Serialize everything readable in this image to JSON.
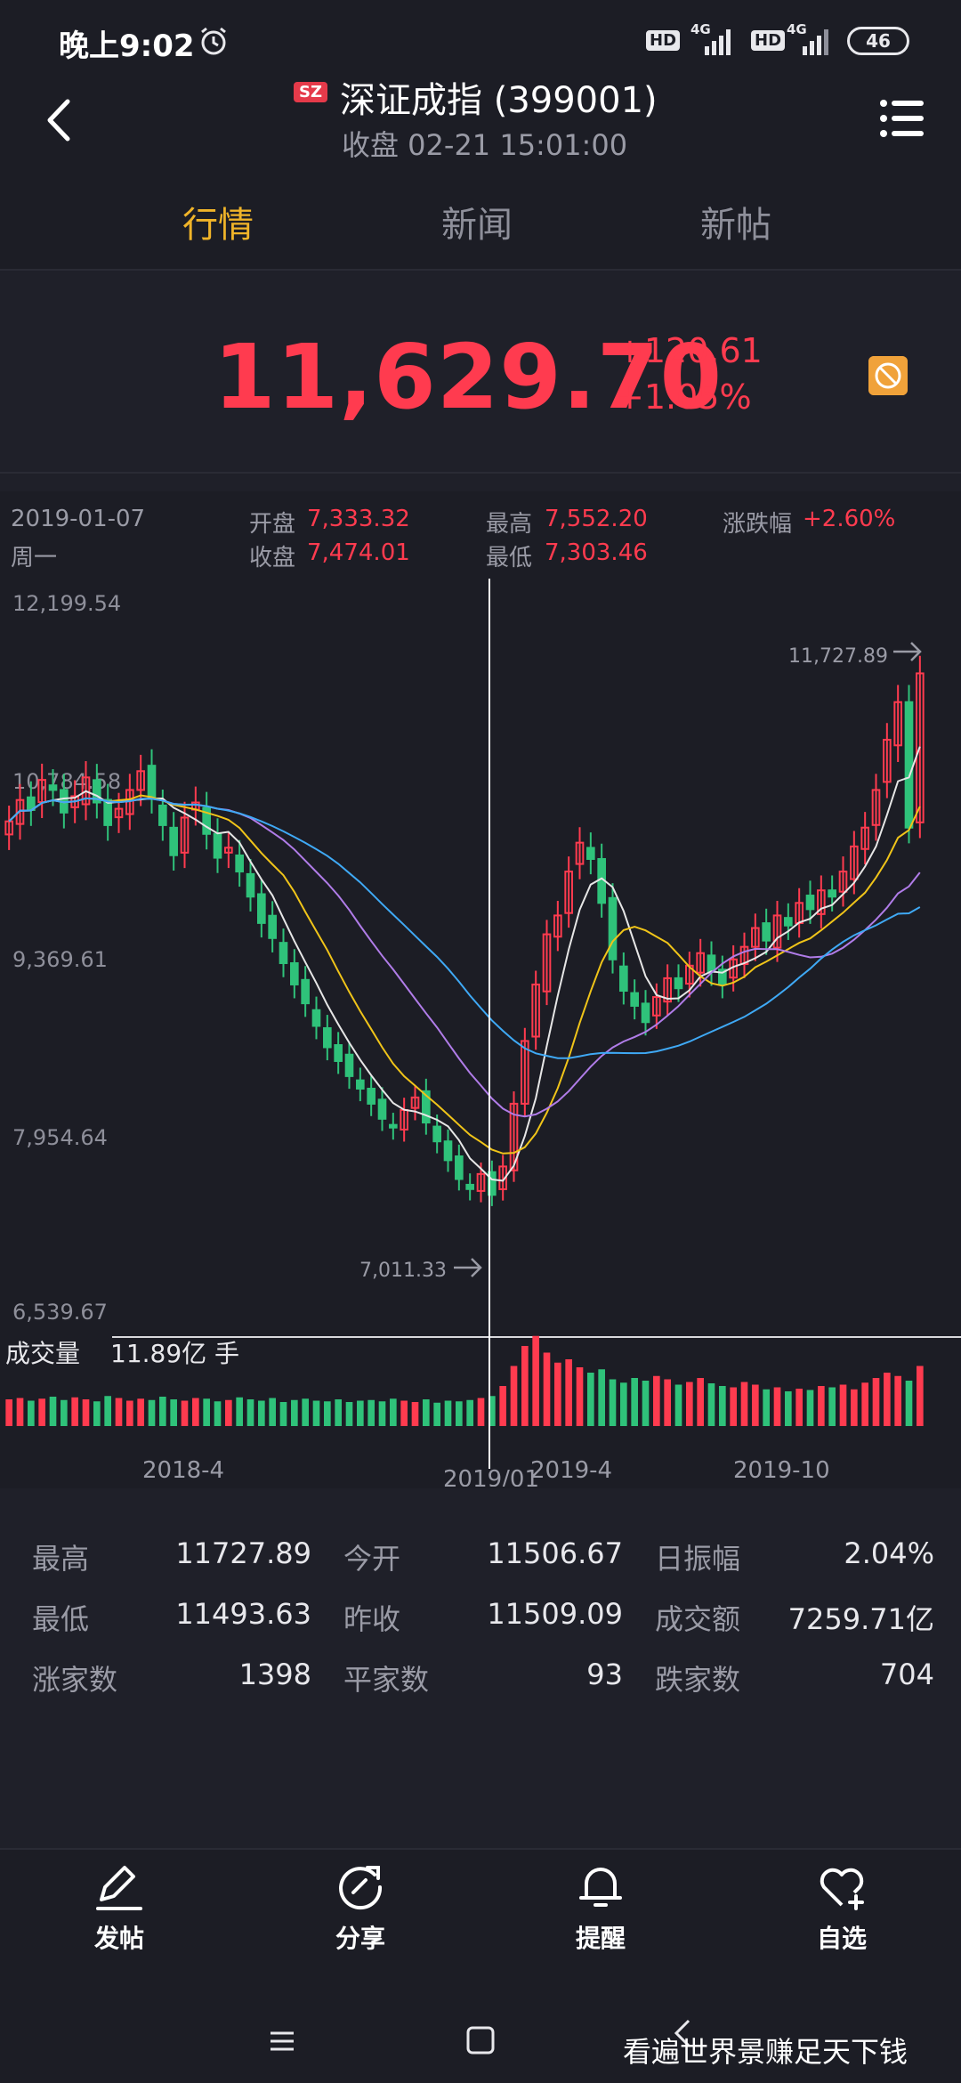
{
  "status_bar": {
    "time": "晚上9:02",
    "hd1": "HD",
    "net1": "4G",
    "hd2": "HD",
    "net2": "4G",
    "battery": "46"
  },
  "header": {
    "badge": "SZ",
    "title": "深证成指 (399001)",
    "subtitle": "收盘 02-21 15:01:00",
    "tabs": [
      {
        "label": "行情",
        "active": true
      },
      {
        "label": "新闻",
        "active": false
      },
      {
        "label": "新帖",
        "active": false
      }
    ]
  },
  "quote": {
    "price": "11,629.70",
    "change": "+120.61",
    "change_pct": "+1.05%"
  },
  "crosshair_info": {
    "date": "2019-01-07",
    "weekday": "周一",
    "open_label": "开盘",
    "open_value": "7,333.32",
    "close_label": "收盘",
    "close_value": "7,474.01",
    "high_label": "最高",
    "high_value": "7,552.20",
    "low_label": "最低",
    "low_value": "7,303.46",
    "chg_label": "涨跌幅",
    "chg_value": "+2.60%"
  },
  "chart_data": {
    "type": "candlestick",
    "y_ticks": [
      "12,199.54",
      "10,784.58",
      "9,369.61",
      "7,954.64",
      "6,539.67"
    ],
    "ylim": [
      6539.67,
      12199.54
    ],
    "max_label": "11,727.89",
    "min_label": "7,011.33",
    "x_ticks": [
      "2018-4",
      "2019/01",
      "2019-4",
      "2019-10"
    ],
    "crosshair_date": "2019/01",
    "volume_label": "成交量",
    "volume_value": "11.89亿 手",
    "colors": {
      "up": "#ff3b4f",
      "down": "#2fc27a",
      "ma5": "#e6e6e6",
      "ma10": "#f0c419",
      "ma20": "#b07ce8",
      "ma30": "#3fa9f5"
    },
    "closes": [
      10450,
      10620,
      10540,
      10780,
      10700,
      10520,
      10650,
      10800,
      10600,
      10420,
      10550,
      10700,
      10850,
      10640,
      10420,
      10180,
      10480,
      10600,
      10350,
      10160,
      10240,
      10050,
      9850,
      9640,
      9520,
      9320,
      9150,
      9000,
      8820,
      8650,
      8540,
      8420,
      8320,
      8200,
      8080,
      8010,
      8150,
      8250,
      8050,
      7900,
      7750,
      7600,
      7520,
      7640,
      7474,
      7700,
      8200,
      8700,
      9150,
      9550,
      9700,
      10050,
      10280,
      10150,
      9800,
      9350,
      9100,
      8980,
      8850,
      9050,
      9200,
      9120,
      9300,
      9400,
      9250,
      9150,
      9350,
      9450,
      9600,
      9500,
      9700,
      9620,
      9800,
      9750,
      9900,
      9850,
      10050,
      10250,
      10400,
      10700,
      11100,
      11400,
      10400,
      11629
    ],
    "volumes": [
      40,
      42,
      38,
      41,
      44,
      39,
      43,
      40,
      37,
      45,
      42,
      38,
      41,
      39,
      44,
      40,
      38,
      42,
      41,
      37,
      39,
      43,
      40,
      38,
      42,
      36,
      39,
      41,
      38,
      37,
      40,
      36,
      38,
      39,
      37,
      41,
      38,
      36,
      40,
      35,
      38,
      37,
      39,
      42,
      45,
      60,
      90,
      120,
      135,
      110,
      95,
      100,
      88,
      80,
      85,
      70,
      65,
      72,
      68,
      75,
      70,
      62,
      66,
      72,
      64,
      60,
      58,
      66,
      62,
      55,
      58,
      52,
      56,
      54,
      60,
      58,
      62,
      55,
      65,
      72,
      80,
      75,
      68,
      90
    ]
  },
  "stats": [
    [
      {
        "label": "最高",
        "value": "11727.89"
      },
      {
        "label": "今开",
        "value": "11506.67"
      },
      {
        "label": "日振幅",
        "value": "2.04%"
      }
    ],
    [
      {
        "label": "最低",
        "value": "11493.63"
      },
      {
        "label": "昨收",
        "value": "11509.09"
      },
      {
        "label": "成交额",
        "value": "7259.71亿"
      }
    ],
    [
      {
        "label": "涨家数",
        "value": "1398"
      },
      {
        "label": "平家数",
        "value": "93"
      },
      {
        "label": "跌家数",
        "value": "704"
      }
    ]
  ],
  "actions": [
    {
      "label": "发帖",
      "icon": "pen-icon"
    },
    {
      "label": "分享",
      "icon": "share-icon"
    },
    {
      "label": "提醒",
      "icon": "bell-icon"
    },
    {
      "label": "自选",
      "icon": "heart-plus-icon"
    }
  ],
  "watermark": "看遍世界景赚足天下钱"
}
